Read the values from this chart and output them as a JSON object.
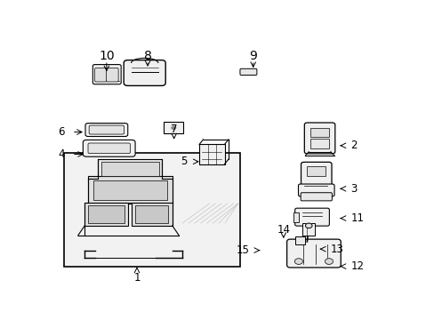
{
  "bg_color": "#ffffff",
  "line_color": "#000000",
  "fig_width": 4.89,
  "fig_height": 3.6,
  "dpi": 100,
  "font_size": 8.5,
  "font_size_large": 10,
  "box_fill": "#f2f2f2",
  "part_fill": "#ffffff",
  "part_fill2": "#eeeeee",
  "labels": {
    "1": [
      0.245,
      0.028,
      "center"
    ],
    "2": [
      0.88,
      0.565,
      "left"
    ],
    "3": [
      0.88,
      0.39,
      "left"
    ],
    "4": [
      0.03,
      0.53,
      "right"
    ],
    "5": [
      0.395,
      0.5,
      "right"
    ],
    "6": [
      0.03,
      0.62,
      "right"
    ],
    "7": [
      0.355,
      0.63,
      "center"
    ],
    "8": [
      0.277,
      0.93,
      "center"
    ],
    "9": [
      0.59,
      0.93,
      "center"
    ],
    "10": [
      0.155,
      0.93,
      "center"
    ],
    "11": [
      0.88,
      0.27,
      "left"
    ],
    "12": [
      0.88,
      0.075,
      "left"
    ],
    "13": [
      0.82,
      0.145,
      "left"
    ],
    "14": [
      0.68,
      0.225,
      "center"
    ],
    "15": [
      0.58,
      0.14,
      "right"
    ]
  },
  "arrows": {
    "1": [
      0.245,
      0.055,
      0.245,
      0.073
    ],
    "2": [
      0.858,
      0.565,
      0.84,
      0.565
    ],
    "3": [
      0.858,
      0.39,
      0.84,
      0.39
    ],
    "4": [
      0.052,
      0.53,
      0.095,
      0.53
    ],
    "5": [
      0.415,
      0.5,
      0.437,
      0.5
    ],
    "6": [
      0.052,
      0.62,
      0.092,
      0.62
    ],
    "7": [
      0.355,
      0.61,
      0.355,
      0.59
    ],
    "8": [
      0.277,
      0.91,
      0.277,
      0.875
    ],
    "9": [
      0.59,
      0.91,
      0.59,
      0.87
    ],
    "10": [
      0.155,
      0.91,
      0.155,
      0.855
    ],
    "11": [
      0.858,
      0.27,
      0.84,
      0.27
    ],
    "12": [
      0.858,
      0.075,
      0.84,
      0.075
    ],
    "13": [
      0.798,
      0.145,
      0.78,
      0.145
    ],
    "14": [
      0.68,
      0.208,
      0.68,
      0.188
    ],
    "15": [
      0.6,
      0.14,
      0.618,
      0.14
    ]
  }
}
